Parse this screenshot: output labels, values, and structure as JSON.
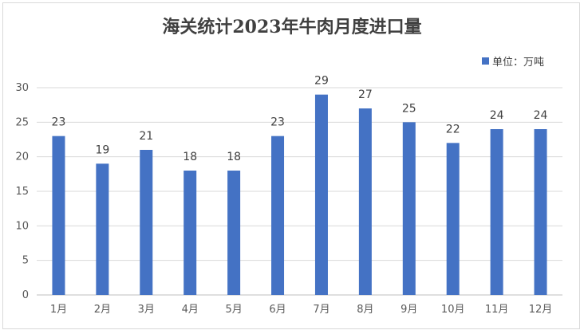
{
  "chart_data": {
    "type": "bar",
    "title": "海关统计2023年牛肉月度进口量",
    "categories": [
      "1月",
      "2月",
      "3月",
      "4月",
      "5月",
      "6月",
      "7月",
      "8月",
      "9月",
      "10月",
      "11月",
      "12月"
    ],
    "series": [
      {
        "name": "单位：万吨",
        "values": [
          23,
          19,
          21,
          18,
          18,
          23,
          29,
          27,
          25,
          22,
          24,
          24
        ],
        "color": "#4472c4"
      }
    ],
    "ylim": [
      0,
      30
    ],
    "yticks": [
      0,
      5,
      10,
      15,
      20,
      25,
      30
    ],
    "xlabel": "",
    "ylabel": "",
    "grid": true,
    "legend_position": "top-right",
    "data_labels": true
  }
}
